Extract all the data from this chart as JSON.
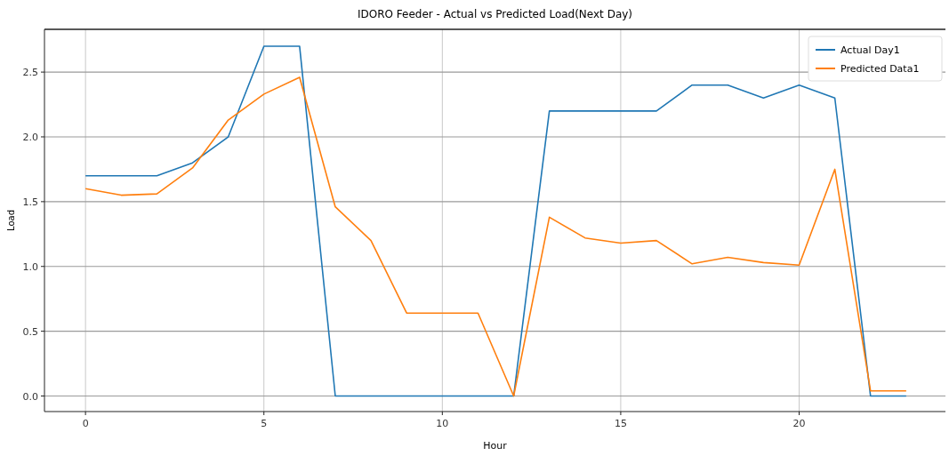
{
  "chart_data": {
    "type": "line",
    "title": "IDORO Feeder - Actual vs Predicted Load(Next Day)",
    "xlabel": "Hour",
    "ylabel": "Load",
    "x": [
      0,
      1,
      2,
      3,
      4,
      5,
      6,
      7,
      8,
      9,
      10,
      11,
      12,
      13,
      14,
      15,
      16,
      17,
      18,
      19,
      20,
      21,
      22,
      23
    ],
    "series": [
      {
        "name": "Actual Day1",
        "color": "#1f77b4",
        "values": [
          1.7,
          1.7,
          1.7,
          1.8,
          2.0,
          2.7,
          2.7,
          0,
          0,
          0,
          0,
          0,
          0,
          2.2,
          2.2,
          2.2,
          2.2,
          2.4,
          2.4,
          2.3,
          2.4,
          2.3,
          0,
          0
        ]
      },
      {
        "name": "Predicted Data1",
        "color": "#ff7f0e",
        "values": [
          1.6,
          1.55,
          1.56,
          1.76,
          2.13,
          2.33,
          2.46,
          1.46,
          1.2,
          0.64,
          0.64,
          0.64,
          0,
          1.38,
          1.22,
          1.18,
          1.2,
          1.02,
          1.07,
          1.03,
          1.01,
          1.75,
          0.04,
          0.04
        ]
      }
    ],
    "xlim": [
      -1.15,
      24.1
    ],
    "xticks": [
      0,
      5,
      10,
      15,
      20
    ],
    "ylim": [
      -0.12,
      2.83
    ],
    "yticks": [
      {
        "value": 0,
        "label": "0.0"
      },
      0.5,
      {
        "value": 1,
        "label": "1.0"
      },
      1.5,
      {
        "value": 2,
        "label": "2.0"
      },
      2.5
    ],
    "grid": true,
    "legend": "top right",
    "marker": "none",
    "line_style": "solid"
  }
}
